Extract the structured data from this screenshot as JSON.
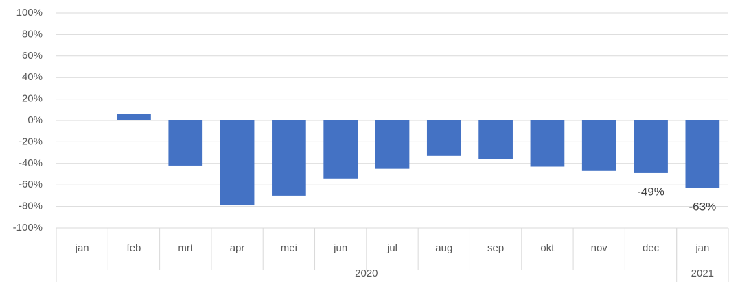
{
  "chart_data": {
    "type": "bar",
    "categories": [
      "jan",
      "feb",
      "mrt",
      "apr",
      "mei",
      "jun",
      "jul",
      "aug",
      "sep",
      "okt",
      "nov",
      "dec",
      "jan"
    ],
    "values": [
      0,
      6,
      -42,
      -79,
      -70,
      -54,
      -45,
      -33,
      -36,
      -43,
      -47,
      -49,
      -63
    ],
    "value_labels": [
      null,
      null,
      null,
      null,
      null,
      null,
      null,
      null,
      null,
      null,
      null,
      "-49%",
      "-63%"
    ],
    "groups": [
      {
        "label": "2020",
        "count": 12
      },
      {
        "label": "2021",
        "count": 1
      }
    ],
    "color": "#4472c4",
    "ylim": [
      -100,
      100
    ],
    "yticks": [
      {
        "value": -100,
        "label": "-100%"
      },
      {
        "value": -80,
        "label": "-80%"
      },
      {
        "value": -60,
        "label": "-60%"
      },
      {
        "value": -40,
        "label": "-40%"
      },
      {
        "value": -20,
        "label": "-20%"
      },
      {
        "value": 0,
        "label": "0%"
      },
      {
        "value": 20,
        "label": "20%"
      },
      {
        "value": 40,
        "label": "40%"
      },
      {
        "value": 60,
        "label": "60%"
      },
      {
        "value": 80,
        "label": "80%"
      },
      {
        "value": 100,
        "label": "100%"
      }
    ],
    "grid": true
  }
}
